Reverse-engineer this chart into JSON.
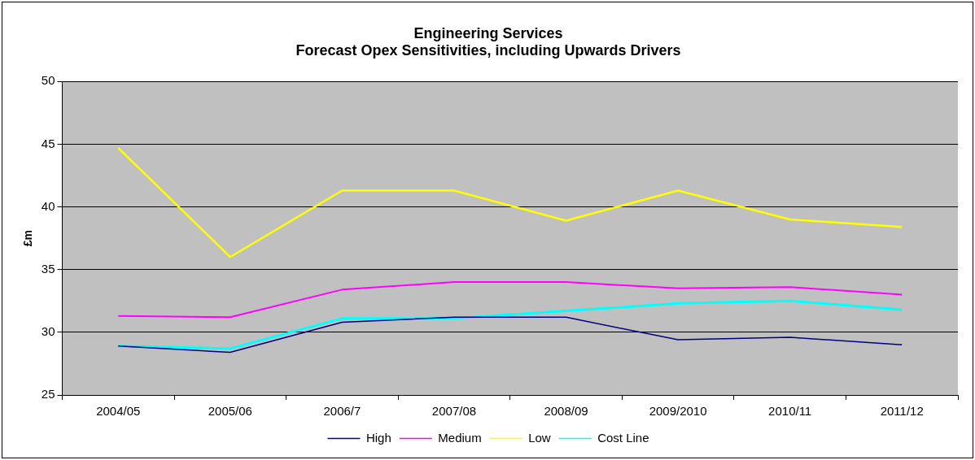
{
  "chart_data": {
    "type": "line",
    "title": [
      "Engineering Services",
      "Forecast Opex Sensitivities, including Upwards Drivers"
    ],
    "ylabel": "£m",
    "categories": [
      "2004/05",
      "2005/06",
      "2006/7",
      "2007/08",
      "2008/09",
      "2009/2010",
      "2010/11",
      "2011/12"
    ],
    "series": [
      {
        "name": "High",
        "color": "#000080",
        "values": [
          28.9,
          28.4,
          30.8,
          31.2,
          31.2,
          29.4,
          29.6,
          29.0
        ]
      },
      {
        "name": "Medium",
        "color": "#ff00ff",
        "values": [
          31.3,
          31.2,
          33.4,
          34.0,
          34.0,
          33.5,
          33.6,
          33.0
        ]
      },
      {
        "name": "Low",
        "color": "#ffff00",
        "values": [
          44.7,
          36.0,
          41.3,
          41.3,
          38.9,
          41.3,
          39.0,
          38.4
        ]
      },
      {
        "name": "Cost Line",
        "color": "#00ffff",
        "values": [
          28.9,
          28.7,
          31.1,
          31.1,
          31.7,
          32.3,
          32.5,
          31.8
        ]
      }
    ],
    "ylim": [
      25,
      50
    ],
    "yticks": [
      25,
      30,
      35,
      40,
      45,
      50
    ],
    "grid": "y",
    "legend": "bottom",
    "marker": "none"
  }
}
